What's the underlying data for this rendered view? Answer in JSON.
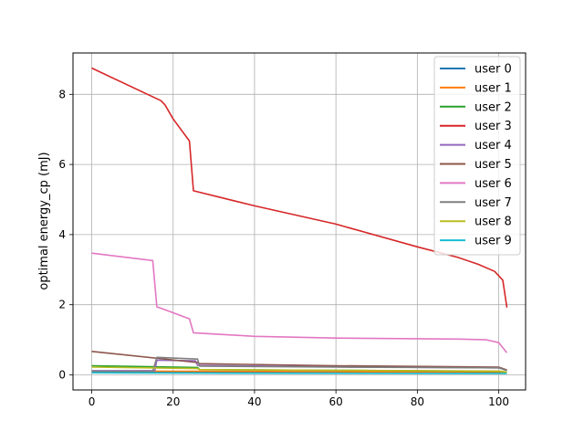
{
  "chart_data": {
    "type": "line",
    "title": "",
    "xlabel": "",
    "ylabel": "optimal energy_cp (mJ)",
    "xlim": [
      -4.6,
      106.6
    ],
    "ylim": [
      -0.43,
      9.18
    ],
    "xticks": [
      0,
      20,
      40,
      60,
      80,
      100
    ],
    "yticks": [
      0,
      2,
      4,
      6,
      8
    ],
    "grid": true,
    "legend_position": "top-right",
    "series": [
      {
        "name": "user 0",
        "color": "#1f77b4",
        "x": [
          0,
          26,
          26.5,
          60,
          100,
          102
        ],
        "y": [
          0.08,
          0.07,
          0.07,
          0.065,
          0.06,
          0.06
        ]
      },
      {
        "name": "user 1",
        "color": "#ff7f0e",
        "x": [
          0,
          26,
          26.5,
          60,
          100,
          102
        ],
        "y": [
          0.11,
          0.1,
          0.1,
          0.09,
          0.08,
          0.07
        ]
      },
      {
        "name": "user 2",
        "color": "#2ca02c",
        "x": [
          0,
          26,
          26.5,
          60,
          100,
          102
        ],
        "y": [
          0.26,
          0.21,
          0.15,
          0.13,
          0.1,
          0.07
        ]
      },
      {
        "name": "user 3",
        "color": "#d62728",
        "x": [
          0,
          17,
          18,
          20,
          24,
          25,
          40,
          60,
          80,
          90,
          95,
          99,
          101,
          102
        ],
        "y": [
          8.75,
          7.82,
          7.7,
          7.3,
          6.67,
          5.25,
          4.82,
          4.3,
          3.65,
          3.35,
          3.15,
          2.95,
          2.7,
          1.92
        ]
      },
      {
        "name": "user 4",
        "color": "#9467bd",
        "x": [
          0,
          15.5,
          16,
          25.5,
          26,
          60,
          100,
          102
        ],
        "y": [
          0.12,
          0.12,
          0.42,
          0.4,
          0.27,
          0.23,
          0.2,
          0.14
        ]
      },
      {
        "name": "user 5",
        "color": "#8c564b",
        "x": [
          0,
          26,
          26.5,
          60,
          100,
          102
        ],
        "y": [
          0.67,
          0.35,
          0.32,
          0.26,
          0.22,
          0.14
        ]
      },
      {
        "name": "user 6",
        "color": "#e377c2",
        "x": [
          0,
          15,
          16,
          17,
          24,
          25,
          40,
          60,
          80,
          90,
          97,
          100,
          102
        ],
        "y": [
          3.47,
          3.26,
          1.94,
          1.9,
          1.6,
          1.2,
          1.1,
          1.05,
          1.03,
          1.02,
          1.0,
          0.92,
          0.63
        ]
      },
      {
        "name": "user 7",
        "color": "#7f7f7f",
        "x": [
          0,
          15,
          16,
          26,
          26.5,
          60,
          100,
          102
        ],
        "y": [
          0.1,
          0.1,
          0.5,
          0.45,
          0.25,
          0.22,
          0.2,
          0.12
        ]
      },
      {
        "name": "user 8",
        "color": "#bcbd22",
        "x": [
          0,
          26,
          26.5,
          60,
          100,
          102
        ],
        "y": [
          0.22,
          0.18,
          0.15,
          0.13,
          0.11,
          0.08
        ]
      },
      {
        "name": "user 9",
        "color": "#17becf",
        "x": [
          0,
          26,
          26.5,
          60,
          100,
          102
        ],
        "y": [
          0.06,
          0.05,
          0.05,
          0.045,
          0.04,
          0.04
        ]
      }
    ]
  }
}
